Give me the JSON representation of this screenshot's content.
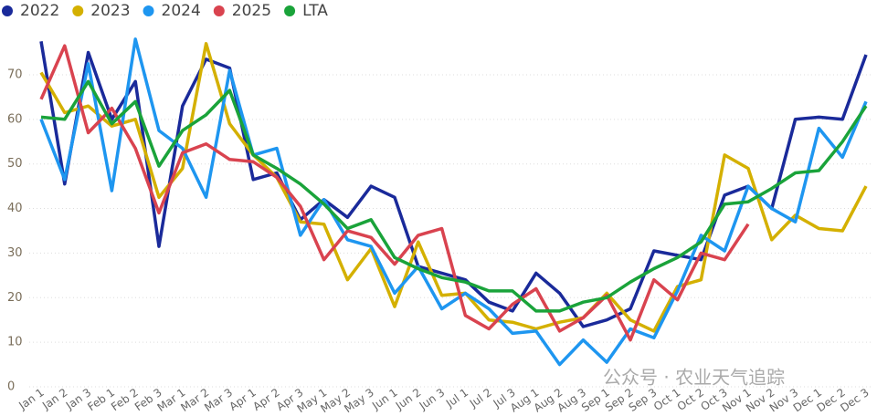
{
  "chart_data": {
    "type": "line",
    "categories": [
      "Jan 1",
      "Jan 2",
      "Jan 3",
      "Feb 1",
      "Feb 2",
      "Feb 3",
      "Mar 1",
      "Mar 2",
      "Mar 3",
      "Apr 1",
      "Apr 2",
      "Apr 3",
      "May 1",
      "May 2",
      "May 3",
      "Jun 1",
      "Jun 2",
      "Jun 3",
      "Jul 1",
      "Jul 2",
      "Jul 3",
      "Aug 1",
      "Aug 2",
      "Aug 3",
      "Sep 1",
      "Sep 2",
      "Sep 3",
      "Oct 1",
      "Oct 2",
      "Oct 3",
      "Nov 1",
      "Nov 2",
      "Nov 3",
      "Dec 1",
      "Dec 2",
      "Dec 3"
    ],
    "series": [
      {
        "name": "2022",
        "color": "#1a2a9a",
        "values": [
          77.5,
          45.5,
          75,
          60,
          68.5,
          31.5,
          63,
          73.5,
          71.5,
          46.5,
          48,
          37.5,
          42,
          38,
          45,
          42.5,
          27,
          25.5,
          24,
          19,
          17,
          25.5,
          21,
          13.5,
          15,
          17.5,
          30.5,
          29.5,
          28.5,
          43,
          45,
          40,
          60,
          60.5,
          60,
          74.5
        ]
      },
      {
        "name": "2023",
        "color": "#d4b000",
        "values": [
          70.5,
          61.5,
          63,
          58.5,
          60,
          42.5,
          49,
          77,
          59,
          52,
          47,
          37,
          36.5,
          24,
          31,
          18,
          32.5,
          20.5,
          21,
          15,
          14.5,
          13,
          14.5,
          15.5,
          21,
          15,
          12.5,
          22.5,
          24,
          52,
          49,
          33,
          38.5,
          35.5,
          35,
          45
        ]
      },
      {
        "name": "2024",
        "color": "#1e96f0",
        "values": [
          60,
          46.5,
          72.5,
          44,
          78,
          57.5,
          53.5,
          42.5,
          71,
          52,
          53.5,
          34,
          42,
          33,
          31.5,
          21,
          27,
          17.5,
          21,
          17.5,
          12,
          12.5,
          5,
          10.5,
          5.5,
          13,
          11,
          21.5,
          34,
          30.5,
          45,
          40,
          37,
          58,
          51.5,
          64
        ]
      },
      {
        "name": "2025",
        "color": "#d9434f",
        "values": [
          64.5,
          76.5,
          57,
          62.5,
          53.5,
          39,
          52.5,
          54.5,
          51,
          50.5,
          47,
          40.5,
          28.5,
          35,
          33.5,
          27.5,
          34,
          35.5,
          16,
          13,
          18.5,
          22,
          12.5,
          15.5,
          20.5,
          10.5,
          24,
          19.5,
          30,
          28.5,
          36.5,
          null,
          null,
          null,
          null,
          null
        ]
      },
      {
        "name": "LTA",
        "color": "#1aa33a",
        "values": [
          60.5,
          60,
          68.5,
          59,
          64,
          49.5,
          57.5,
          61,
          66.5,
          52,
          49,
          45.5,
          41,
          35.5,
          37.5,
          29,
          26.5,
          24.5,
          23.5,
          21.5,
          21.5,
          17,
          17,
          19,
          20,
          23.5,
          26.5,
          29,
          32.5,
          41,
          41.5,
          44.5,
          48,
          48.5,
          55,
          63
        ]
      }
    ],
    "ylim": [
      0,
      79
    ],
    "yticks": [
      0,
      10,
      20,
      30,
      40,
      50,
      60,
      70
    ],
    "grid": true,
    "annotation": "公众号 · 农业天气追踪"
  }
}
